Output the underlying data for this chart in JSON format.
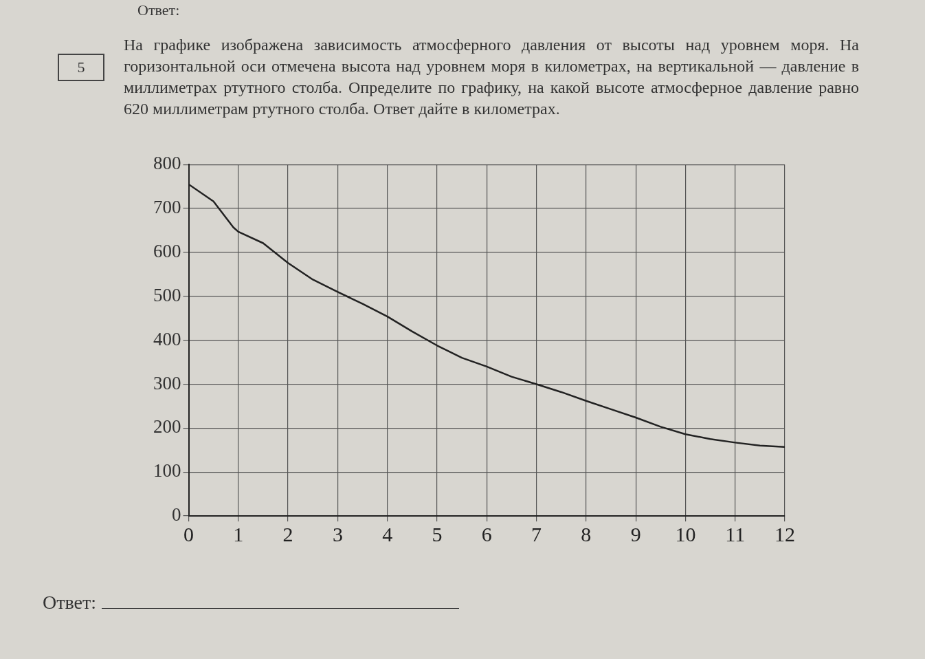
{
  "chart_data": {
    "type": "line",
    "title": "На графике изображена зависимость атмосферного давления от высоты над уровнем моря. На горизонтальной оси отмечена высота над уровнем моря в километрах, на вертикальной — давление в миллиметрах ртутного столба. Определите по графику, на какой высоте атмосферное давление равно 620 миллиметрам ртутного столба. Ответ дайте в километрах.",
    "annotations": [
      "Ответ:",
      "5",
      "Ответ:"
    ],
    "x": [
      0,
      0.5,
      0.9,
      1,
      1.5,
      2,
      2.5,
      3,
      3.5,
      4,
      4.5,
      5,
      5.5,
      6,
      6.5,
      7,
      7.5,
      8,
      8.5,
      9,
      9.5,
      10,
      10.5,
      11,
      11.5,
      12
    ],
    "series": [
      {
        "color": "#222222",
        "values": [
          755,
          716,
          657,
          647,
          621,
          576,
          538,
          510,
          483,
          454,
          420,
          388,
          360,
          340,
          317,
          300,
          282,
          262,
          243,
          224,
          203,
          186,
          175,
          167,
          160,
          157
        ]
      }
    ],
    "xlim": [
      0,
      12
    ],
    "xticks": [
      0,
      1,
      2,
      3,
      4,
      5,
      6,
      7,
      8,
      9,
      10,
      11,
      12
    ],
    "ylim": [
      0,
      800
    ],
    "yticks": [
      0,
      100,
      200,
      300,
      400,
      500,
      600,
      700,
      800
    ],
    "grid": true,
    "legend": false,
    "marker": "none",
    "line_style": "solid"
  }
}
